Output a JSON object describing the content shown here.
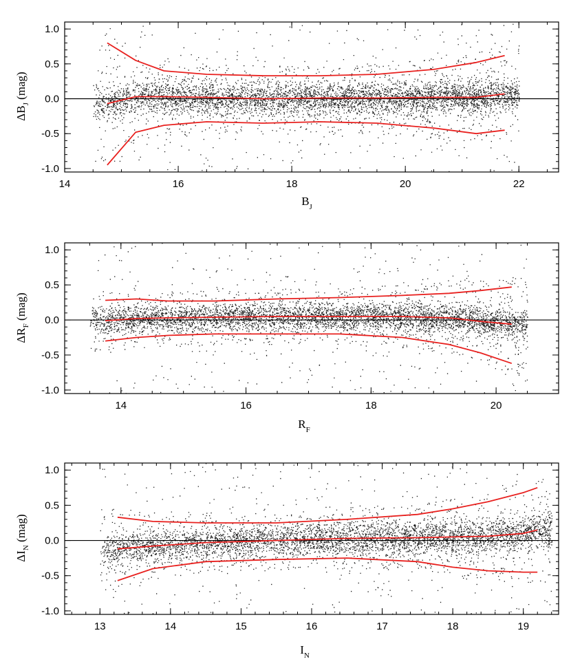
{
  "chart_data": [
    {
      "type": "scatter",
      "xlabel": "B",
      "xlabel_sub": "J",
      "ylabel_prefix": "ΔB",
      "ylabel_sub": "J",
      "ylabel_suffix": "(mag)",
      "xlim": [
        14,
        22.7
      ],
      "ylim": [
        -1.05,
        1.1
      ],
      "xticks": [
        14,
        16,
        18,
        20,
        22
      ],
      "yticks": [
        -1.0,
        -0.5,
        0.0,
        0.5,
        1.0
      ],
      "ytick_labels": [
        "-1.0",
        "-0.5",
        "0.0",
        "0.5",
        "1.0"
      ],
      "zero_line": 0,
      "scatter_range": [
        14.5,
        22.0
      ],
      "scatter_core_sigma": 0.12,
      "series": [
        {
          "name": "upper",
          "color": "#e8201e",
          "x": [
            14.75,
            15.25,
            15.75,
            16.5,
            17.5,
            18.5,
            19.5,
            20.5,
            21.25,
            21.75
          ],
          "y": [
            0.8,
            0.55,
            0.4,
            0.35,
            0.33,
            0.33,
            0.35,
            0.42,
            0.52,
            0.62
          ]
        },
        {
          "name": "median",
          "color": "#e8201e",
          "x": [
            14.75,
            15.25,
            15.75,
            16.5,
            17.5,
            18.5,
            19.5,
            20.5,
            21.25,
            21.75
          ],
          "y": [
            -0.07,
            0.03,
            0.03,
            0.02,
            0.0,
            0.01,
            0.01,
            0.02,
            0.02,
            0.07
          ]
        },
        {
          "name": "lower",
          "color": "#e8201e",
          "x": [
            14.75,
            15.25,
            15.75,
            16.5,
            17.5,
            18.5,
            19.5,
            20.5,
            21.25,
            21.75
          ],
          "y": [
            -0.95,
            -0.48,
            -0.38,
            -0.33,
            -0.35,
            -0.33,
            -0.35,
            -0.42,
            -0.5,
            -0.45
          ]
        }
      ]
    },
    {
      "type": "scatter",
      "xlabel": "R",
      "xlabel_sub": "F",
      "ylabel_prefix": "ΔR",
      "ylabel_sub": "F",
      "ylabel_suffix": "(mag)",
      "xlim": [
        13.1,
        21.0
      ],
      "ylim": [
        -1.05,
        1.1
      ],
      "xticks": [
        14,
        16,
        18,
        20
      ],
      "yticks": [
        -1.0,
        -0.5,
        0.0,
        0.5,
        1.0
      ],
      "ytick_labels": [
        "-1.0",
        "-0.5",
        "0.0",
        "0.5",
        "1.0"
      ],
      "zero_line": 0,
      "scatter_range": [
        13.5,
        20.5
      ],
      "scatter_core_sigma": 0.1,
      "series": [
        {
          "name": "upper",
          "color": "#e8201e",
          "x": [
            13.75,
            14.25,
            14.75,
            15.5,
            16.5,
            17.5,
            18.5,
            19.25,
            19.75,
            20.25
          ],
          "y": [
            0.28,
            0.3,
            0.27,
            0.27,
            0.3,
            0.32,
            0.35,
            0.38,
            0.42,
            0.47
          ]
        },
        {
          "name": "median",
          "color": "#e8201e",
          "x": [
            13.75,
            14.25,
            14.75,
            15.5,
            16.5,
            17.5,
            18.5,
            19.25,
            19.75,
            20.25
          ],
          "y": [
            -0.01,
            0.02,
            0.03,
            0.04,
            0.05,
            0.05,
            0.05,
            0.03,
            -0.02,
            -0.06
          ]
        },
        {
          "name": "lower",
          "color": "#e8201e",
          "x": [
            13.75,
            14.25,
            14.75,
            15.5,
            16.5,
            17.5,
            18.5,
            19.25,
            19.75,
            20.25
          ],
          "y": [
            -0.3,
            -0.25,
            -0.22,
            -0.2,
            -0.2,
            -0.2,
            -0.25,
            -0.35,
            -0.47,
            -0.62
          ]
        }
      ]
    },
    {
      "type": "scatter",
      "xlabel": "I",
      "xlabel_sub": "N",
      "ylabel_prefix": "ΔI",
      "ylabel_sub": "N",
      "ylabel_suffix": "(mag)",
      "xlim": [
        12.5,
        19.5
      ],
      "ylim": [
        -1.05,
        1.1
      ],
      "xticks": [
        13,
        14,
        15,
        16,
        17,
        18,
        19
      ],
      "yticks": [
        -1.0,
        -0.5,
        0.0,
        0.5,
        1.0
      ],
      "ytick_labels": [
        "-1.0",
        "-0.5",
        "0.0",
        "0.5",
        "1.0"
      ],
      "zero_line": 0,
      "scatter_range": [
        13.0,
        19.4
      ],
      "scatter_core_sigma": 0.12,
      "series": [
        {
          "name": "upper",
          "color": "#e8201e",
          "x": [
            13.25,
            13.75,
            14.5,
            15.5,
            16.5,
            17.5,
            18.0,
            18.5,
            19.0,
            19.2
          ],
          "y": [
            0.33,
            0.27,
            0.25,
            0.25,
            0.3,
            0.37,
            0.45,
            0.55,
            0.68,
            0.75
          ]
        },
        {
          "name": "median",
          "color": "#e8201e",
          "x": [
            13.25,
            13.75,
            14.5,
            15.5,
            16.5,
            17.5,
            18.0,
            18.5,
            19.0,
            19.2
          ],
          "y": [
            -0.12,
            -0.08,
            -0.03,
            0.0,
            0.03,
            0.04,
            0.05,
            0.06,
            0.1,
            0.15
          ]
        },
        {
          "name": "lower",
          "color": "#e8201e",
          "x": [
            13.25,
            13.75,
            14.5,
            15.5,
            16.5,
            17.5,
            18.0,
            18.5,
            19.0,
            19.2
          ],
          "y": [
            -0.57,
            -0.4,
            -0.3,
            -0.27,
            -0.25,
            -0.3,
            -0.38,
            -0.43,
            -0.45,
            -0.45
          ]
        }
      ]
    }
  ]
}
